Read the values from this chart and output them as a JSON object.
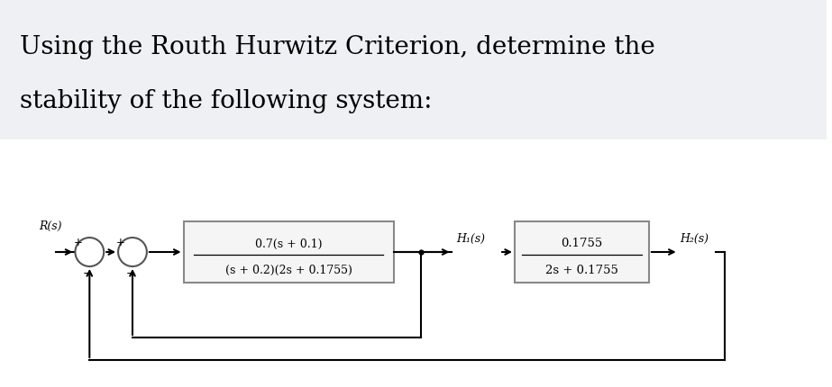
{
  "title_line1": "Using the Routh Hurwitz Criterion, determine the",
  "title_line2": "stability of the following system:",
  "title_fontsize": 20,
  "title_bg_color": "#eff0f4",
  "diagram_bg_color": "#ffffff",
  "text_color": "#000000",
  "block_edge_color": "#888888",
  "block_fill_color": "#f5f5f5",
  "block1_num": "0.7(s + 0.1)",
  "block1_den": "(s + 0.2)(2s + 0.1755)",
  "block2_num": "0.1755",
  "block2_den": "2s + 0.1755",
  "Rs_label": "R(s)",
  "H1s_label": "H₁(s)",
  "H2s_label": "H₂(s)"
}
